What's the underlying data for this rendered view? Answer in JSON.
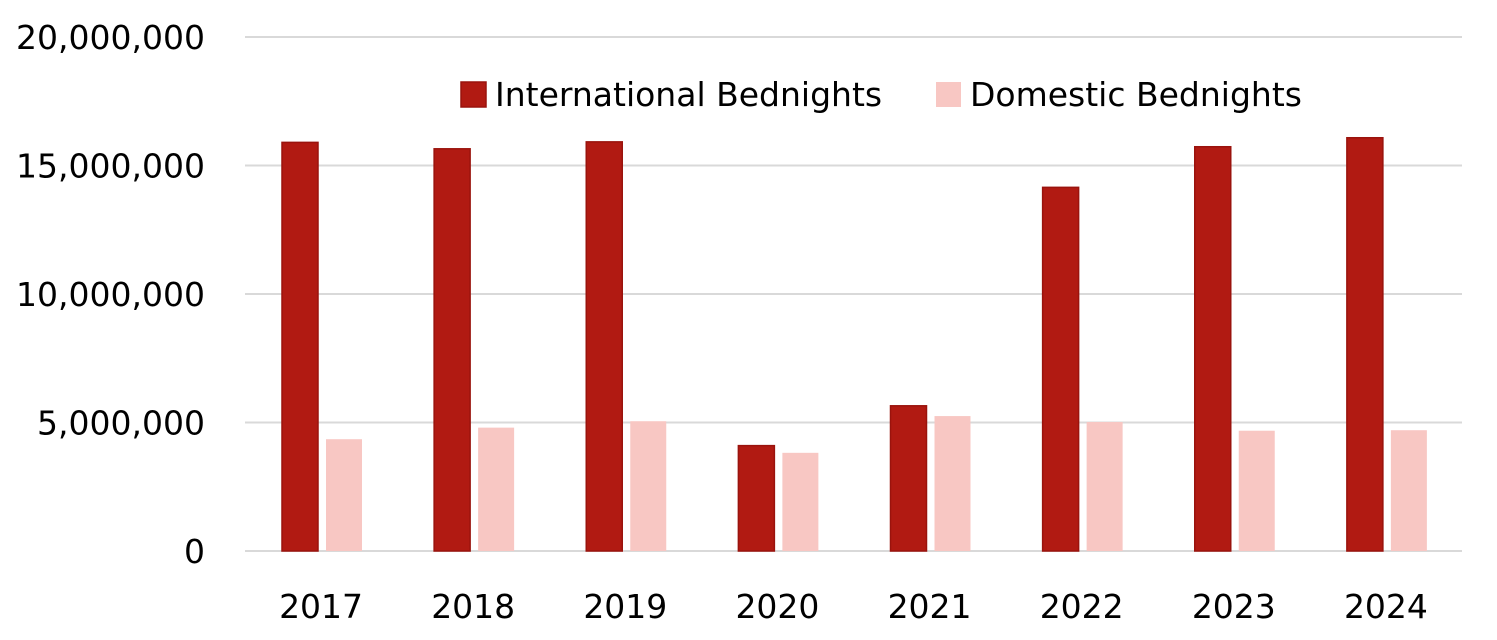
{
  "chart_data": {
    "type": "bar",
    "title": "",
    "xlabel": "",
    "ylabel": "",
    "categories": [
      "2017",
      "2018",
      "2019",
      "2020",
      "2021",
      "2022",
      "2023",
      "2024"
    ],
    "series": [
      {
        "name": "International Bednights",
        "color": "#b11a12",
        "values": [
          15900000,
          15650000,
          15920000,
          4100000,
          5650000,
          14150000,
          15730000,
          16080000
        ]
      },
      {
        "name": "Domestic Bednights",
        "color": "#f8c7c3",
        "values": [
          4350000,
          4800000,
          5050000,
          3820000,
          5250000,
          5020000,
          4680000,
          4700000
        ]
      }
    ],
    "ylim": [
      0,
      20000000
    ],
    "yticks": [
      0,
      5000000,
      10000000,
      15000000,
      20000000
    ],
    "ytick_labels": [
      "0",
      "5,000,000",
      "10,000,000",
      "15,000,000",
      "20,000,000"
    ],
    "grid": true,
    "legend_position": "top"
  }
}
